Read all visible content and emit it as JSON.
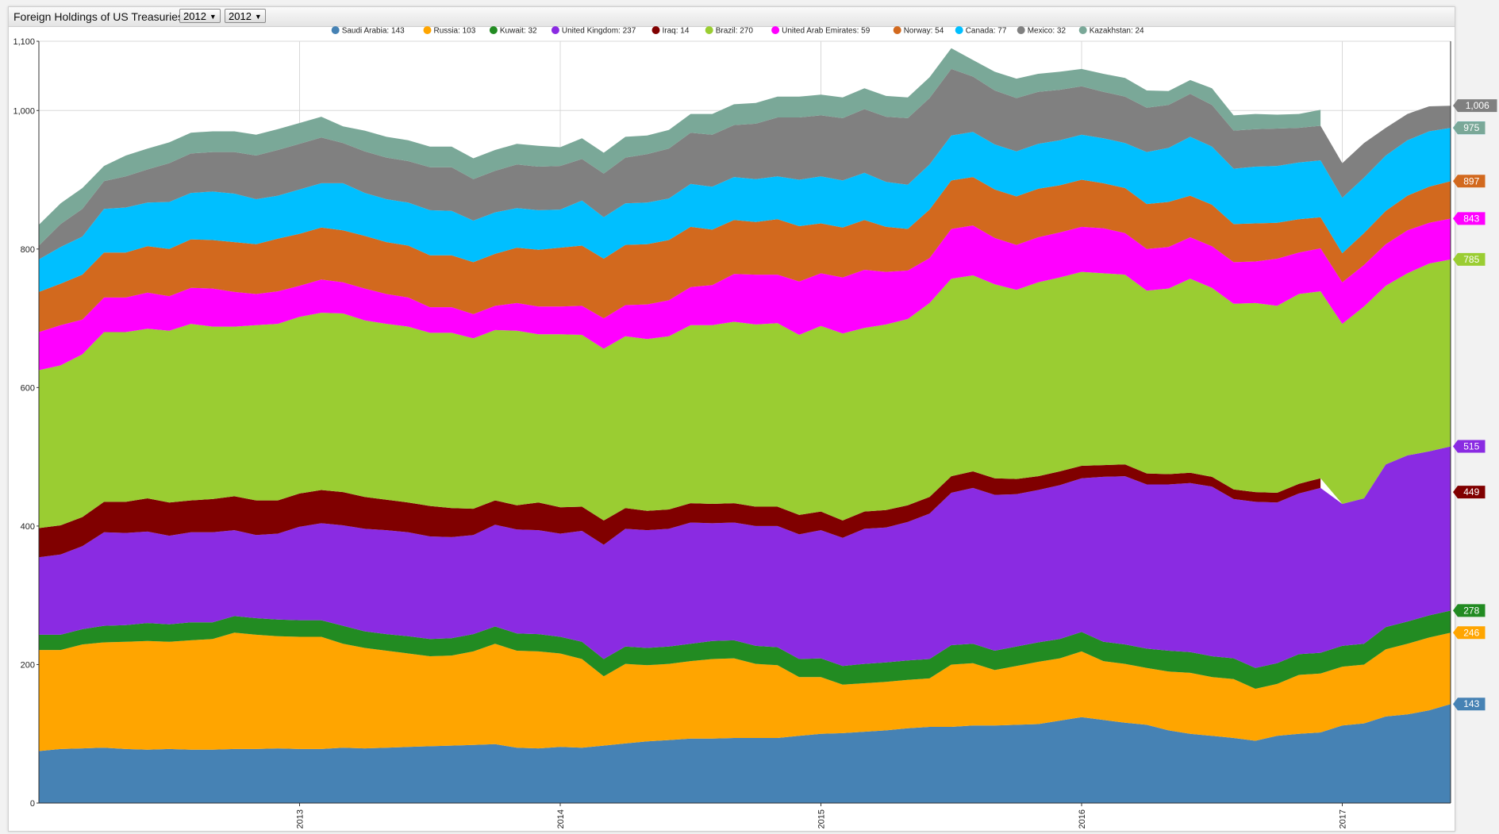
{
  "header": {
    "title": "Foreign Holdings of US Treasuries",
    "start_year": "2012",
    "end_year": "2012"
  },
  "chart_data": {
    "type": "area",
    "stacked": true,
    "title": "Foreign Holdings of US Treasuries",
    "x_start": "2012-01",
    "x_ticks": [
      "2013",
      "2014",
      "2015",
      "2016",
      "2017"
    ],
    "ylim": [
      0,
      1100
    ],
    "y_ticks": [
      "0",
      "200",
      "400",
      "600",
      "800",
      "1,000",
      "1,100"
    ],
    "y_tick_values": [
      0,
      200,
      400,
      600,
      800,
      1000,
      1100
    ],
    "grid": true,
    "legend_position": "top",
    "series": [
      {
        "name": "Saudi Arabia",
        "legend": "Saudi Arabia: 143",
        "color": "#4682b4",
        "tag": "143",
        "values": [
          75,
          78,
          79,
          80,
          78,
          77,
          78,
          77,
          77,
          78,
          78,
          79,
          78,
          78,
          80,
          79,
          80,
          81,
          82,
          83,
          84,
          85,
          80,
          79,
          81,
          80,
          83,
          86,
          89,
          91,
          93,
          93,
          94,
          94,
          94,
          97,
          100,
          101,
          103,
          105,
          108,
          110,
          110,
          112,
          112,
          113,
          114,
          119,
          124,
          120,
          116,
          113,
          105,
          100,
          97,
          94,
          90,
          97,
          100,
          102,
          112,
          115,
          125,
          128,
          134,
          143
        ]
      },
      {
        "name": "Russia",
        "legend": "Russia: 103",
        "color": "#ffa500",
        "tag": "246",
        "values": [
          146,
          143,
          150,
          152,
          155,
          157,
          155,
          158,
          160,
          168,
          165,
          162,
          162,
          162,
          150,
          145,
          140,
          135,
          130,
          130,
          135,
          145,
          140,
          140,
          135,
          128,
          100,
          115,
          110,
          110,
          112,
          115,
          115,
          107,
          105,
          85,
          82,
          70,
          70,
          70,
          70,
          70,
          90,
          90,
          80,
          85,
          90,
          90,
          95,
          85,
          85,
          82,
          85,
          88,
          85,
          85,
          75,
          75,
          85,
          85,
          85,
          85,
          97,
          102,
          105,
          103
        ]
      },
      {
        "name": "Kuwait",
        "legend": "Kuwait: 32",
        "color": "#228b22",
        "tag": "278",
        "values": [
          22,
          22,
          22,
          24,
          24,
          26,
          25,
          26,
          24,
          24,
          24,
          24,
          24,
          24,
          26,
          24,
          24,
          25,
          25,
          25,
          25,
          25,
          25,
          25,
          24,
          25,
          25,
          25,
          25,
          25,
          25,
          26,
          26,
          26,
          26,
          26,
          27,
          27,
          28,
          28,
          28,
          28,
          28,
          28,
          28,
          28,
          28,
          28,
          28,
          28,
          28,
          28,
          30,
          30,
          30,
          30,
          30,
          30,
          30,
          30,
          30,
          30,
          32,
          32,
          32,
          32
        ]
      },
      {
        "name": "United Kingdom",
        "legend": "United Kingdom: 237",
        "color": "#8a2be2",
        "tag": "515",
        "values": [
          112,
          116,
          120,
          135,
          133,
          132,
          128,
          130,
          130,
          124,
          120,
          124,
          135,
          140,
          145,
          148,
          150,
          150,
          148,
          146,
          143,
          147,
          150,
          150,
          149,
          160,
          165,
          170,
          170,
          170,
          175,
          170,
          170,
          173,
          175,
          180,
          185,
          185,
          195,
          195,
          200,
          210,
          220,
          225,
          225,
          220,
          220,
          222,
          222,
          238,
          243,
          237,
          240,
          244,
          245,
          230,
          240,
          232,
          232,
          238,
          205,
          210,
          235,
          240,
          237,
          237
        ]
      },
      {
        "name": "Iraq",
        "legend": "Iraq: 14",
        "color": "#800000",
        "tag": "449",
        "values": [
          42,
          42,
          42,
          44,
          45,
          48,
          48,
          46,
          48,
          49,
          50,
          48,
          48,
          48,
          48,
          46,
          44,
          43,
          44,
          42,
          38,
          35,
          35,
          40,
          38,
          35,
          35,
          30,
          28,
          28,
          28,
          28,
          28,
          28,
          28,
          28,
          27,
          25,
          25,
          25,
          24,
          24,
          24,
          24,
          24,
          22,
          20,
          20,
          18,
          17,
          17,
          16,
          15,
          15,
          14,
          14,
          14,
          14,
          14,
          14,
          0,
          0,
          0,
          0,
          0,
          0
        ]
      },
      {
        "name": "Brazil",
        "legend": "Brazil: 270",
        "color": "#9acd32",
        "tag": "785",
        "values": [
          228,
          231,
          235,
          245,
          245,
          245,
          248,
          255,
          249,
          245,
          253,
          255,
          255,
          256,
          258,
          255,
          254,
          254,
          250,
          253,
          246,
          246,
          252,
          243,
          250,
          248,
          248,
          248,
          248,
          250,
          257,
          258,
          262,
          263,
          265,
          260,
          268,
          270,
          265,
          268,
          269,
          280,
          285,
          283,
          280,
          273,
          280,
          280,
          280,
          277,
          274,
          264,
          268,
          280,
          273,
          268,
          273,
          270,
          274,
          270,
          260,
          277,
          258,
          263,
          271,
          270
        ]
      },
      {
        "name": "United Arab Emirates",
        "legend": "United Arab Emirates: 59",
        "color": "#ff00ff",
        "tag": "843",
        "values": [
          55,
          58,
          50,
          50,
          50,
          52,
          50,
          52,
          55,
          50,
          45,
          47,
          45,
          48,
          45,
          46,
          43,
          42,
          37,
          37,
          35,
          35,
          40,
          40,
          40,
          42,
          44,
          45,
          50,
          52,
          55,
          58,
          69,
          72,
          70,
          77,
          76,
          81,
          84,
          76,
          70,
          65,
          72,
          72,
          67,
          65,
          65,
          65,
          65,
          65,
          60,
          60,
          60,
          60,
          60,
          60,
          60,
          68,
          60,
          62,
          60,
          60,
          60,
          62,
          59,
          59
        ]
      },
      {
        "name": "Norway",
        "legend": "Norway: 54",
        "color": "#d2691e",
        "tag": "897",
        "values": [
          58,
          60,
          65,
          65,
          65,
          67,
          68,
          70,
          70,
          72,
          72,
          76,
          75,
          75,
          75,
          76,
          75,
          75,
          75,
          75,
          75,
          75,
          80,
          82,
          85,
          87,
          86,
          87,
          87,
          87,
          87,
          80,
          78,
          76,
          80,
          80,
          72,
          72,
          72,
          65,
          60,
          70,
          70,
          70,
          70,
          70,
          70,
          68,
          68,
          65,
          65,
          65,
          65,
          60,
          60,
          55,
          55,
          52,
          48,
          45,
          42,
          46,
          48,
          50,
          52,
          54
        ]
      },
      {
        "name": "Canada",
        "legend": "Canada: 77",
        "color": "#00bfff",
        "tag": "975",
        "values": [
          47,
          53,
          55,
          63,
          65,
          63,
          68,
          67,
          70,
          70,
          65,
          62,
          64,
          64,
          68,
          62,
          62,
          62,
          65,
          64,
          60,
          60,
          57,
          57,
          55,
          65,
          60,
          60,
          60,
          60,
          62,
          62,
          62,
          62,
          62,
          67,
          68,
          68,
          68,
          65,
          64,
          65,
          65,
          65,
          65,
          65,
          65,
          65,
          65,
          65,
          65,
          75,
          78,
          85,
          84,
          80,
          82,
          82,
          82,
          82,
          80,
          80,
          80,
          80,
          80,
          77
        ]
      },
      {
        "name": "Mexico",
        "legend": "Mexico: 32",
        "color": "#808080",
        "tag": "1,006",
        "values": [
          20,
          33,
          40,
          40,
          45,
          48,
          56,
          57,
          57,
          60,
          63,
          66,
          66,
          66,
          58,
          60,
          60,
          60,
          62,
          63,
          60,
          60,
          63,
          63,
          63,
          60,
          63,
          66,
          70,
          72,
          74,
          75,
          75,
          80,
          85,
          90,
          88,
          90,
          92,
          94,
          96,
          96,
          96,
          80,
          78,
          77,
          75,
          73,
          70,
          67,
          67,
          64,
          62,
          62,
          60,
          55,
          54,
          54,
          50,
          50,
          50,
          50,
          40,
          38,
          36,
          32
        ]
      },
      {
        "name": "Kazakhstan",
        "legend": "Kazakhstan: 24",
        "color": "#7aa898",
        "tag": "975",
        "values": [
          30,
          30,
          30,
          22,
          30,
          30,
          30,
          30,
          30,
          30,
          30,
          30,
          30,
          30,
          24,
          30,
          30,
          30,
          30,
          30,
          30,
          30,
          30,
          30,
          27,
          30,
          30,
          30,
          27,
          27,
          27,
          30,
          30,
          30,
          30,
          30,
          30,
          30,
          30,
          30,
          30,
          30,
          30,
          24,
          27,
          28,
          26,
          26,
          25,
          26,
          27,
          25,
          20,
          20,
          24,
          22,
          22,
          20,
          20,
          23,
          0,
          0,
          0,
          0,
          0,
          0
        ]
      }
    ]
  }
}
